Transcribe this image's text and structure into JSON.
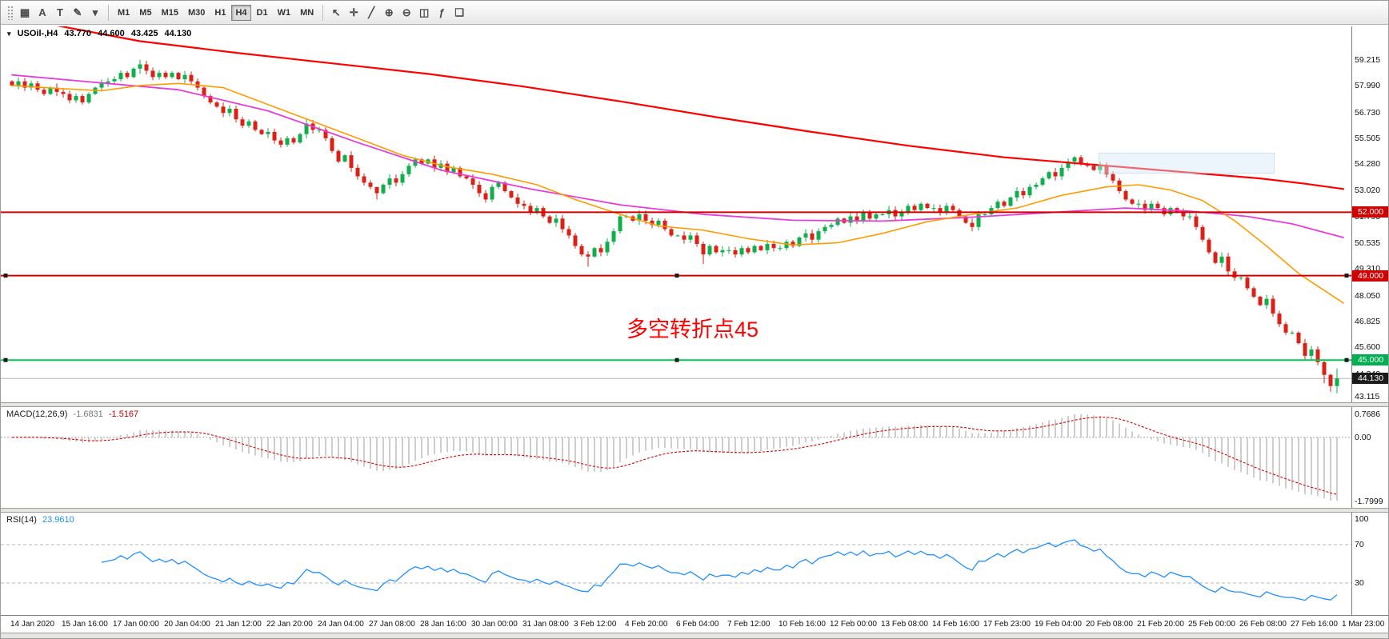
{
  "toolbar": {
    "left_icons": [
      {
        "name": "tick-grid-icon",
        "glyph": "▦"
      },
      {
        "name": "text-label-tool-icon",
        "glyph": "A"
      },
      {
        "name": "shape-tool-icon",
        "glyph": "T"
      },
      {
        "name": "draw-tools-icon",
        "glyph": "✎"
      },
      {
        "name": "draw-tools-dropdown-icon",
        "glyph": "▾"
      }
    ],
    "timeframes": [
      {
        "label": "M1",
        "active": false
      },
      {
        "label": "M5",
        "active": false
      },
      {
        "label": "M15",
        "active": false
      },
      {
        "label": "M30",
        "active": false
      },
      {
        "label": "H1",
        "active": false
      },
      {
        "label": "H4",
        "active": true
      },
      {
        "label": "D1",
        "active": false
      },
      {
        "label": "W1",
        "active": false
      },
      {
        "label": "MN",
        "active": false
      }
    ],
    "right_icons": [
      {
        "name": "cursor-tool-icon",
        "glyph": "↖"
      },
      {
        "name": "crosshair-tool-icon",
        "glyph": "✛"
      },
      {
        "name": "trendline-tool-icon",
        "glyph": "╱"
      },
      {
        "name": "zoom-in-icon",
        "glyph": "⊕"
      },
      {
        "name": "zoom-out-icon",
        "glyph": "⊖"
      },
      {
        "name": "chart-type-icon",
        "glyph": "◫"
      },
      {
        "name": "indicators-icon",
        "glyph": "ƒ"
      },
      {
        "name": "tile-windows-icon",
        "glyph": "❏"
      }
    ]
  },
  "chart_header": {
    "menu_icon": "▾",
    "symbol_period": "USOil-,H4",
    "open": "43.770",
    "high": "44.600",
    "low": "43.425",
    "close": "44.130"
  },
  "price_scale": {
    "labels": [
      {
        "text": "59.215",
        "value": 59.215
      },
      {
        "text": "57.990",
        "value": 57.99
      },
      {
        "text": "56.730",
        "value": 56.73
      },
      {
        "text": "55.505",
        "value": 55.505
      },
      {
        "text": "54.280",
        "value": 54.28
      },
      {
        "text": "53.020",
        "value": 53.02
      },
      {
        "text": "51.795",
        "value": 51.795
      },
      {
        "text": "50.535",
        "value": 50.535
      },
      {
        "text": "49.310",
        "value": 49.31
      },
      {
        "text": "48.050",
        "value": 48.05
      },
      {
        "text": "46.825",
        "value": 46.825
      },
      {
        "text": "45.600",
        "value": 45.6
      },
      {
        "text": "44.340",
        "value": 44.34
      },
      {
        "text": "43.115",
        "value": 43.115
      }
    ],
    "badges": [
      {
        "text": "52.000",
        "value": 52.0,
        "bg": "#d10000"
      },
      {
        "text": "49.000",
        "value": 49.0,
        "bg": "#d10000"
      },
      {
        "text": "45.000",
        "value": 45.0,
        "bg": "#00b050"
      },
      {
        "text": "44.130",
        "value": 44.13,
        "bg": "#1c1c1c"
      }
    ]
  },
  "chart_data": {
    "type": "candlestick",
    "symbol": "USOil-",
    "timeframe": "H4",
    "colors": {
      "up": "#0faf4c",
      "down": "#dd2016"
    },
    "main": {
      "ylim": [
        43.0,
        60.8
      ],
      "first_open": 58.2,
      "closes": [
        58.0,
        58.2,
        57.9,
        58.1,
        57.8,
        57.6,
        57.9,
        57.7,
        57.6,
        57.3,
        57.5,
        57.2,
        57.6,
        57.9,
        58.1,
        58.2,
        58.3,
        58.6,
        58.4,
        58.8,
        59.0,
        58.7,
        58.4,
        58.6,
        58.4,
        58.6,
        58.3,
        58.5,
        58.2,
        57.9,
        57.5,
        57.2,
        57.0,
        56.7,
        56.9,
        56.4,
        56.1,
        56.3,
        55.9,
        55.7,
        55.8,
        55.4,
        55.2,
        55.5,
        55.3,
        55.7,
        56.2,
        55.9,
        55.9,
        55.5,
        54.9,
        54.4,
        54.7,
        54.1,
        53.7,
        53.4,
        53.2,
        52.9,
        53.3,
        53.6,
        53.4,
        53.8,
        54.2,
        54.5,
        54.3,
        54.5,
        54.1,
        54.3,
        53.9,
        54.1,
        53.7,
        53.6,
        53.3,
        52.9,
        52.6,
        53.2,
        53.4,
        53.0,
        52.7,
        52.4,
        52.3,
        52.0,
        52.2,
        51.8,
        51.5,
        51.7,
        51.2,
        50.9,
        50.4,
        50.0,
        49.9,
        50.3,
        50.1,
        50.6,
        51.1,
        51.8,
        51.8,
        51.6,
        51.9,
        51.6,
        51.4,
        51.6,
        51.2,
        50.9,
        50.9,
        50.7,
        50.9,
        50.5,
        50.0,
        50.4,
        50.1,
        50.2,
        50.2,
        50.0,
        50.3,
        50.1,
        50.4,
        50.2,
        50.5,
        50.3,
        50.3,
        50.6,
        50.4,
        50.8,
        51.0,
        50.7,
        51.1,
        51.3,
        51.4,
        51.7,
        51.5,
        51.8,
        51.6,
        52.0,
        51.7,
        51.9,
        51.9,
        52.1,
        51.8,
        52.0,
        52.3,
        52.1,
        52.4,
        52.2,
        52.2,
        52.0,
        52.3,
        52.1,
        51.8,
        51.5,
        51.3,
        51.9,
        51.9,
        52.2,
        52.5,
        52.3,
        52.7,
        53.0,
        52.8,
        53.2,
        53.3,
        53.6,
        53.9,
        53.7,
        54.1,
        54.4,
        54.6,
        54.3,
        54.2,
        54.0,
        54.2,
        53.8,
        53.5,
        53.0,
        52.6,
        52.4,
        52.4,
        52.1,
        52.4,
        52.2,
        51.9,
        52.2,
        52.0,
        51.8,
        51.8,
        51.3,
        50.7,
        50.1,
        49.6,
        49.9,
        49.2,
        48.9,
        48.9,
        48.4,
        48.0,
        47.6,
        47.9,
        47.2,
        46.7,
        46.3,
        46.3,
        45.8,
        45.2,
        45.5,
        44.9,
        44.3,
        43.77,
        44.13
      ],
      "wick_overrides": {
        "20": [
          59.22,
          58.55
        ],
        "57": [
          53.05,
          52.6
        ],
        "90": [
          50.15,
          49.42
        ],
        "108": [
          50.6,
          49.55
        ],
        "166": [
          54.66,
          54.2
        ],
        "205": [
          44.95,
          43.9
        ],
        "206": [
          44.35,
          43.5
        ],
        "207": [
          44.6,
          43.425
        ]
      },
      "hlines": [
        {
          "value": 52.0,
          "color": "#d10000",
          "width": 2,
          "handles": false
        },
        {
          "value": 49.0,
          "color": "#d10000",
          "width": 2,
          "handles": true
        },
        {
          "value": 45.0,
          "color": "#00c853",
          "width": 2,
          "handles": true
        }
      ],
      "bid_line": {
        "value": 44.13,
        "color": "#b5b5b5"
      },
      "ma_lines": [
        {
          "name": "ma-slow-red",
          "color": "#ff0000",
          "width": 2.2,
          "points": [
            [
              6,
              60.9
            ],
            [
              20,
              60.1
            ],
            [
              35,
              59.55
            ],
            [
              50,
              59.05
            ],
            [
              65,
              58.55
            ],
            [
              80,
              57.95
            ],
            [
              95,
              57.25
            ],
            [
              110,
              56.5
            ],
            [
              125,
              55.8
            ],
            [
              140,
              55.15
            ],
            [
              155,
              54.6
            ],
            [
              165,
              54.35
            ],
            [
              175,
              54.1
            ],
            [
              185,
              53.85
            ],
            [
              195,
              53.6
            ],
            [
              202,
              53.35
            ],
            [
              208,
              53.1
            ]
          ]
        },
        {
          "name": "ma-mid-magenta",
          "color": "#e73bda",
          "width": 1.8,
          "points": [
            [
              0,
              58.5
            ],
            [
              13,
              58.15
            ],
            [
              26,
              57.8
            ],
            [
              40,
              56.8
            ],
            [
              54,
              55.3
            ],
            [
              67,
              54.0
            ],
            [
              81,
              53.1
            ],
            [
              95,
              52.35
            ],
            [
              108,
              51.9
            ],
            [
              122,
              51.62
            ],
            [
              136,
              51.58
            ],
            [
              149,
              51.75
            ],
            [
              163,
              52.0
            ],
            [
              174,
              52.2
            ],
            [
              184,
              52.05
            ],
            [
              193,
              51.8
            ],
            [
              200,
              51.45
            ],
            [
              208,
              50.8
            ]
          ]
        },
        {
          "name": "ma-fast-orange",
          "color": "#ff9c00",
          "width": 1.6,
          "points": [
            [
              0,
              58.0
            ],
            [
              8,
              57.85
            ],
            [
              14,
              57.75
            ],
            [
              20,
              58.0
            ],
            [
              26,
              58.1
            ],
            [
              33,
              57.9
            ],
            [
              40,
              57.1
            ],
            [
              47,
              56.3
            ],
            [
              54,
              55.5
            ],
            [
              61,
              54.7
            ],
            [
              68,
              54.15
            ],
            [
              75,
              53.8
            ],
            [
              82,
              53.3
            ],
            [
              88,
              52.6
            ],
            [
              95,
              51.9
            ],
            [
              101,
              51.35
            ],
            [
              108,
              51.15
            ],
            [
              115,
              50.75
            ],
            [
              122,
              50.45
            ],
            [
              129,
              50.55
            ],
            [
              136,
              51.0
            ],
            [
              143,
              51.55
            ],
            [
              150,
              51.9
            ],
            [
              157,
              52.2
            ],
            [
              164,
              52.8
            ],
            [
              171,
              53.2
            ],
            [
              176,
              53.3
            ],
            [
              181,
              53.05
            ],
            [
              186,
              52.55
            ],
            [
              191,
              51.6
            ],
            [
              196,
              50.4
            ],
            [
              201,
              49.1
            ],
            [
              205,
              48.3
            ],
            [
              208,
              47.7
            ]
          ]
        }
      ],
      "annotation": {
        "text": "多空转折点45",
        "color": "#ff0000",
        "x_candle": 96,
        "price": 46.6
      }
    },
    "macd": {
      "label": "MACD(12,26,9)",
      "value_main": "-1.6831",
      "value_signal": "-1.5167",
      "fast": 12,
      "slow": 26,
      "signal": 9,
      "histogram_color": "#b9b9b9",
      "signal_color": "#e00000",
      "scale_labels": {
        "top": "0.7686",
        "zero": "0.00",
        "bottom": "-1.7999"
      }
    },
    "rsi": {
      "label": "RSI(14)",
      "value": "23.9610",
      "period": 14,
      "levels": [
        70,
        30
      ],
      "line_color": "#1e90ff",
      "scale_labels": [
        {
          "text": "100",
          "value": 100
        },
        {
          "text": "70",
          "value": 70
        },
        {
          "text": "30",
          "value": 30
        }
      ]
    },
    "time_axis": {
      "bars_per_label": 8,
      "labels": [
        "14 Jan 2020",
        "15 Jan 16:00",
        "17 Jan 00:00",
        "20 Jan 04:00",
        "21 Jan 12:00",
        "22 Jan 20:00",
        "24 Jan 04:00",
        "27 Jan 08:00",
        "28 Jan 16:00",
        "30 Jan 00:00",
        "31 Jan 08:00",
        "3 Feb 12:00",
        "4 Feb 20:00",
        "6 Feb 04:00",
        "7 Feb 12:00",
        "10 Feb 16:00",
        "12 Feb 00:00",
        "13 Feb 08:00",
        "14 Feb 16:00",
        "17 Feb 23:00",
        "19 Feb 04:00",
        "20 Feb 08:00",
        "21 Feb 20:00",
        "25 Feb 00:00",
        "26 Feb 08:00",
        "27 Feb 16:00",
        "1 Mar 23:00"
      ]
    }
  }
}
